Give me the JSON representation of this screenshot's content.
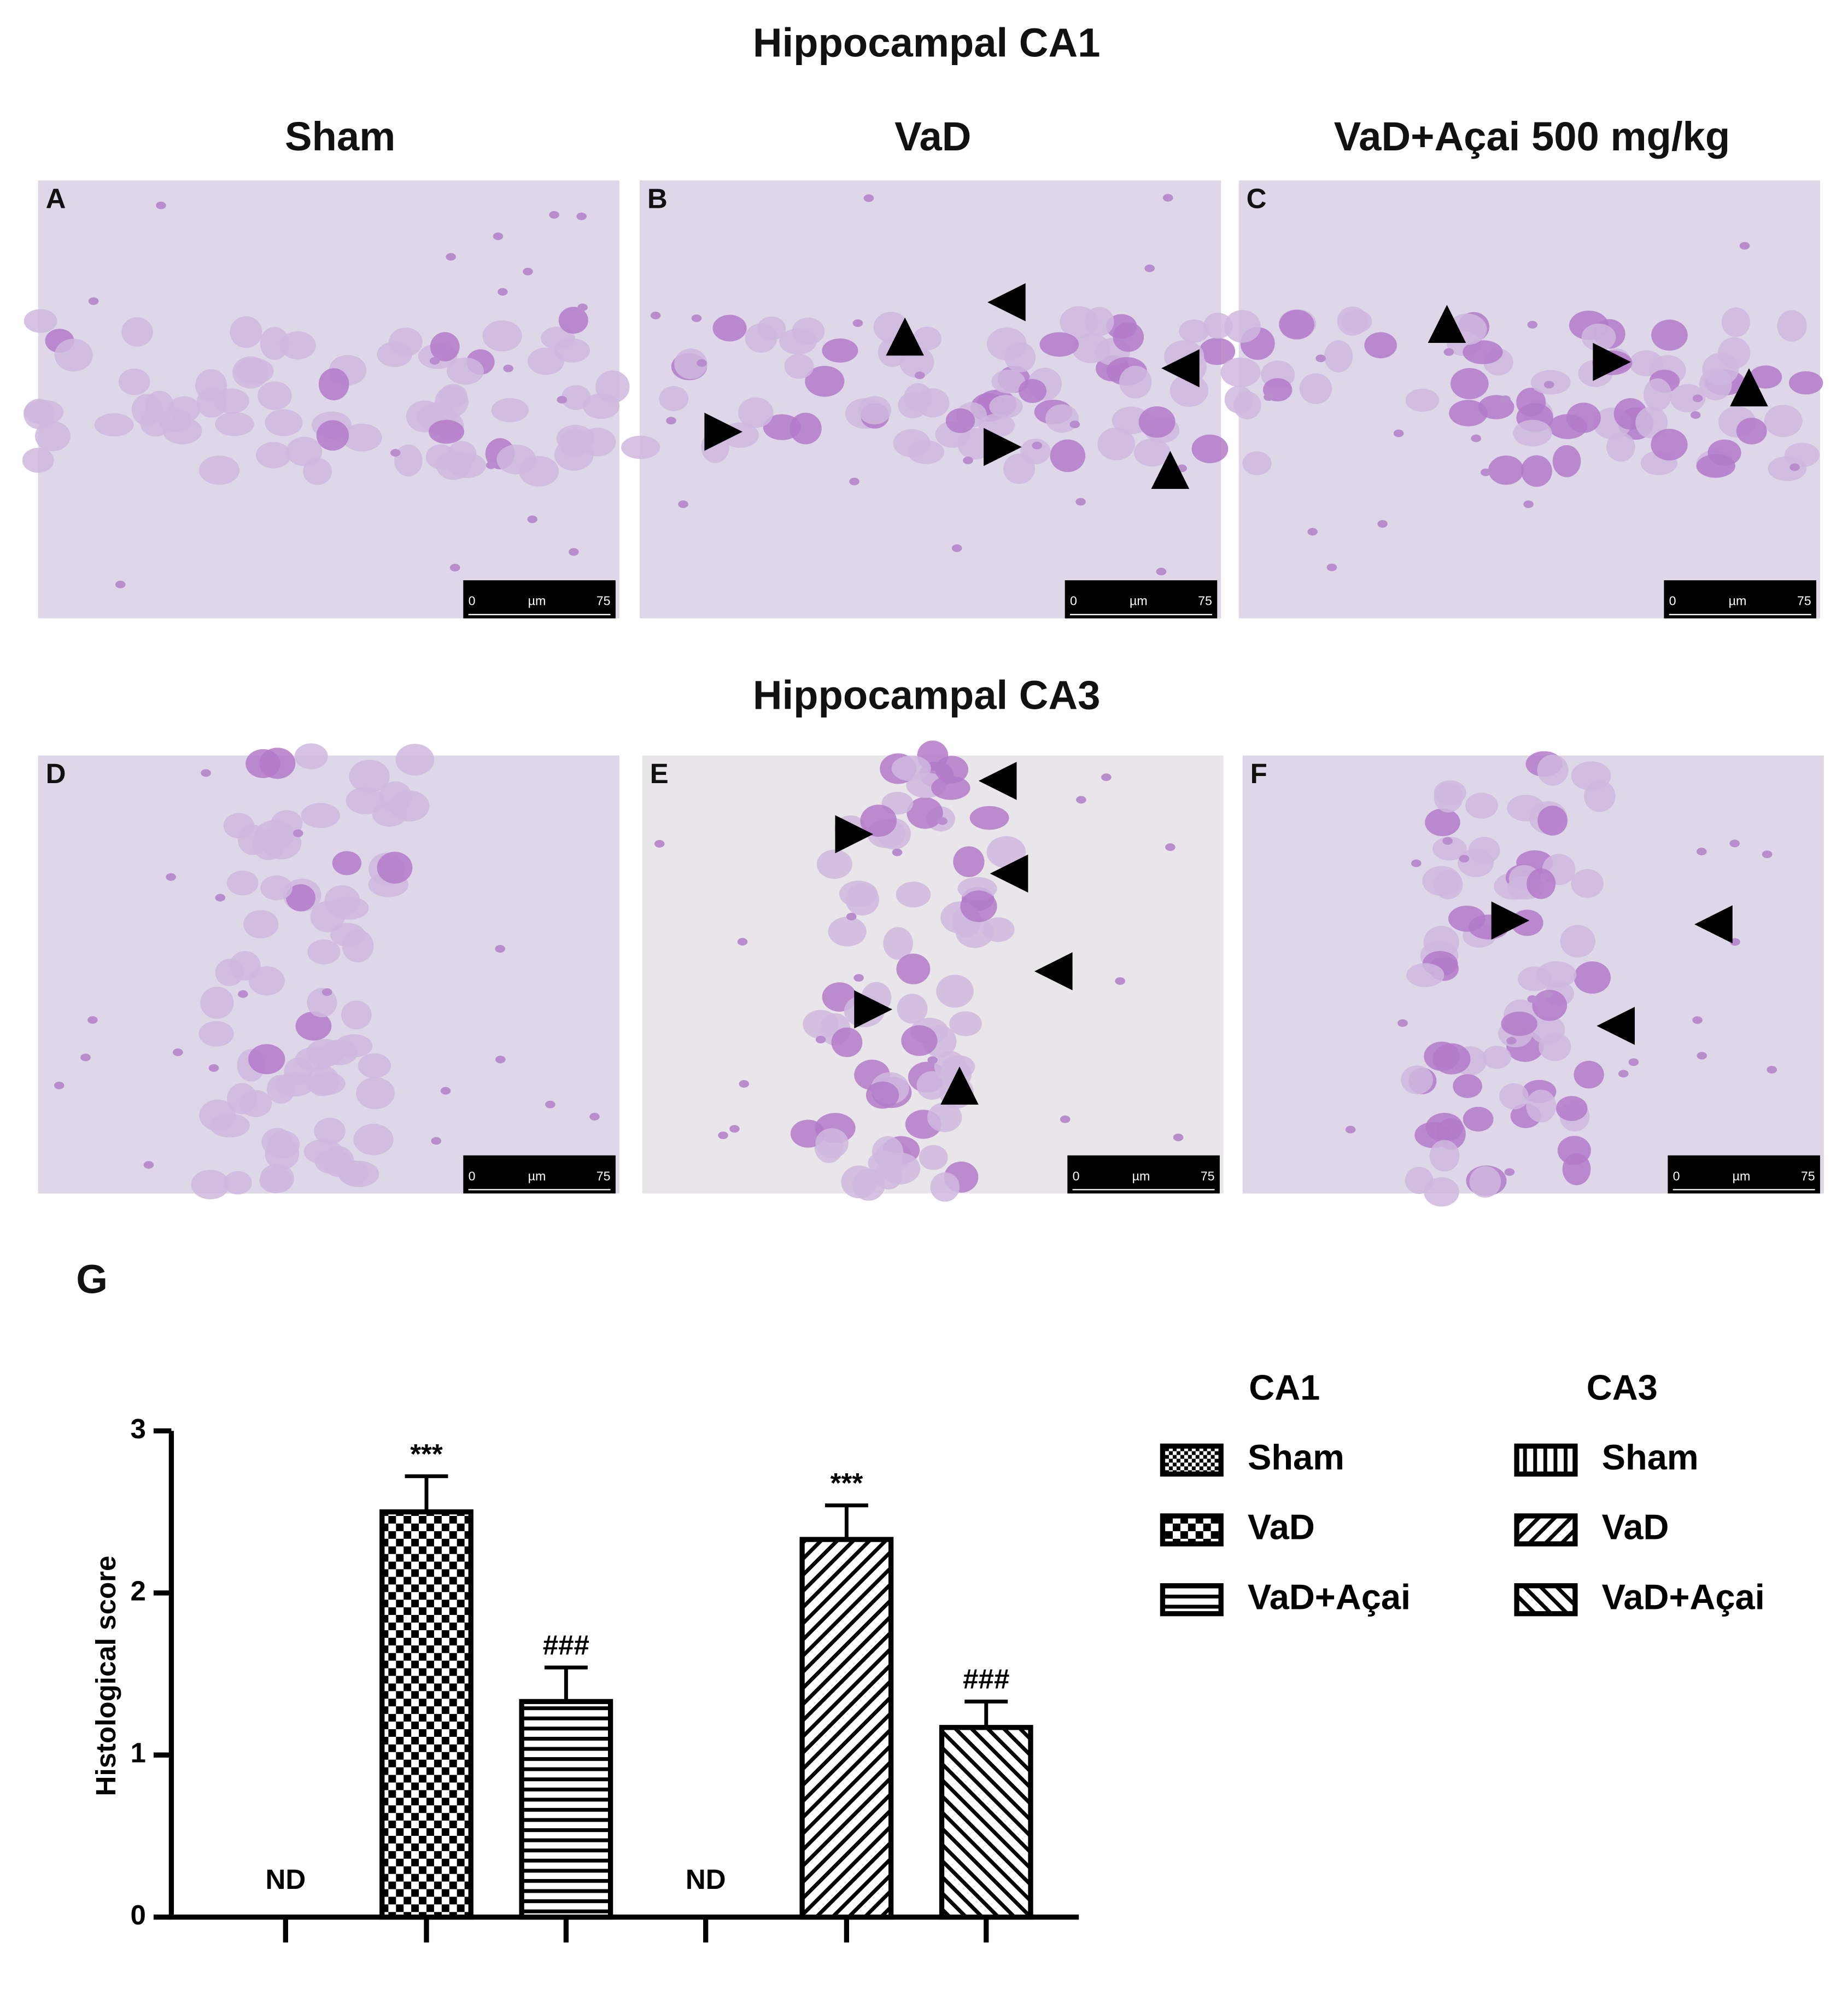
{
  "figure": {
    "rows": [
      {
        "title": "Hippocampal CA1",
        "columns": [
          "Sham",
          "VaD",
          "VaD+Açai 500 mg/kg"
        ],
        "panels": [
          "A",
          "B",
          "C"
        ]
      },
      {
        "title": "Hippocampal CA3",
        "panels": [
          "D",
          "E",
          "F"
        ]
      }
    ],
    "scale_bar": {
      "min": "0",
      "unit": "µm",
      "max": "75"
    },
    "chart_panel": "G"
  },
  "chart_data": {
    "type": "bar",
    "y_label": "Histological score",
    "categories": [
      null,
      null,
      null,
      null,
      null,
      null
    ],
    "values": [
      null,
      2.5,
      1.33,
      null,
      2.33,
      1.17
    ],
    "errors": [
      null,
      0.22,
      0.21,
      null,
      0.21,
      0.16
    ],
    "labels": [
      "ND",
      null,
      null,
      "ND",
      null,
      null
    ],
    "annotations": [
      null,
      "***",
      "###",
      null,
      "***",
      "###"
    ],
    "patterns": [
      "checker-fine",
      "checker",
      "hlines",
      "vlines",
      "diag",
      "antidiag"
    ],
    "ylim": [
      0,
      3
    ],
    "yticks": [
      0,
      1,
      2,
      3
    ],
    "legend": {
      "groups": [
        {
          "title": "CA1",
          "entries": [
            "Sham",
            "VaD",
            "VaD+Açai"
          ]
        },
        {
          "title": "CA3",
          "entries": [
            "Sham",
            "VaD",
            "VaD+Açai"
          ]
        }
      ]
    }
  }
}
